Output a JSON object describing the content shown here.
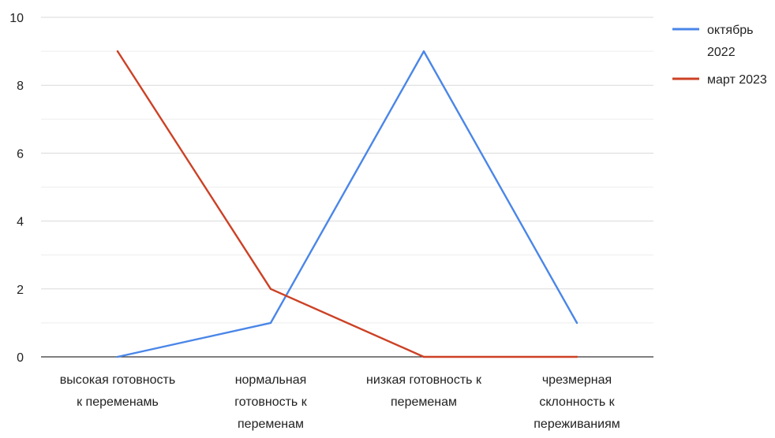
{
  "chart_data": {
    "type": "line",
    "title": "",
    "xlabel": "",
    "ylabel": "",
    "ylim": [
      0,
      10
    ],
    "yticks": [
      0,
      2,
      4,
      6,
      8,
      10
    ],
    "grid": true,
    "legend_position": "right",
    "categories": [
      [
        "высокая готовность",
        "к переменамь"
      ],
      [
        "нормальная",
        "готовность к",
        "переменам"
      ],
      [
        "низкая готовность к",
        "переменам"
      ],
      [
        "чрезмерная",
        "склонность к",
        "переживаниям"
      ]
    ],
    "series": [
      {
        "name_lines": [
          "октябрь",
          "2022"
        ],
        "color": "#4a86e8",
        "values": [
          0,
          1,
          9,
          1
        ]
      },
      {
        "name_lines": [
          "март 2023"
        ],
        "color": "#cc4125",
        "values": [
          9,
          2,
          0,
          0
        ]
      }
    ]
  }
}
